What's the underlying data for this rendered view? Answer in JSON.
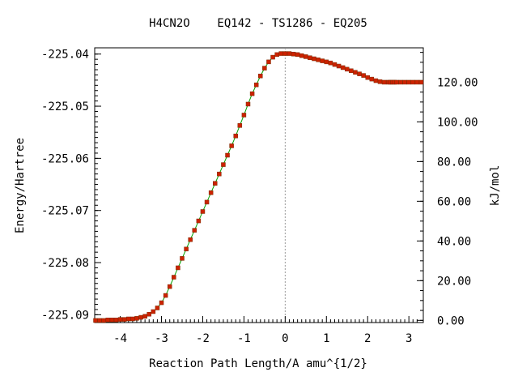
{
  "chart_data": {
    "type": "line",
    "title": "H4CN2O    EQ142 - TS1286 - EQ205",
    "xlabel": "Reaction Path Length/A amu^{1/2}",
    "ylabel": "Energy/Hartree",
    "y2label": "kJ/mol",
    "xlim": [
      -4.62,
      3.35
    ],
    "ylim": [
      -225.0915,
      -225.0388
    ],
    "y2lim": [
      -1.1,
      137.3
    ],
    "grid": false,
    "ts_marker_x": 0,
    "x_ticks": [
      {
        "value": -4,
        "label": "-4"
      },
      {
        "value": -3,
        "label": "-3"
      },
      {
        "value": -2,
        "label": "-2"
      },
      {
        "value": -1,
        "label": "-1"
      },
      {
        "value": 0,
        "label": "0"
      },
      {
        "value": 1,
        "label": "1"
      },
      {
        "value": 2,
        "label": "2"
      },
      {
        "value": 3,
        "label": "3"
      }
    ],
    "y_ticks": [
      {
        "value": -225.04,
        "label": "-225.04"
      },
      {
        "value": -225.05,
        "label": "-225.05"
      },
      {
        "value": -225.06,
        "label": "-225.06"
      },
      {
        "value": -225.07,
        "label": "-225.07"
      },
      {
        "value": -225.08,
        "label": "-225.08"
      },
      {
        "value": -225.09,
        "label": "-225.09"
      }
    ],
    "y2_ticks": [
      {
        "value": 0,
        "label": "0.00"
      },
      {
        "value": 20,
        "label": "20.00"
      },
      {
        "value": 40,
        "label": "40.00"
      },
      {
        "value": 60,
        "label": "60.00"
      },
      {
        "value": 80,
        "label": "80.00"
      },
      {
        "value": 100,
        "label": "100.00"
      },
      {
        "value": 120,
        "label": "120.00"
      }
    ],
    "series": [
      {
        "line_color": "#00a000",
        "marker_color": "#cc2200",
        "x": [
          -4.6,
          -4.5,
          -4.4,
          -4.3,
          -4.2,
          -4.1,
          -4.0,
          -3.9,
          -3.8,
          -3.7,
          -3.6,
          -3.5,
          -3.4,
          -3.3,
          -3.2,
          -3.1,
          -3.0,
          -2.9,
          -2.8,
          -2.7,
          -2.6,
          -2.5,
          -2.4,
          -2.3,
          -2.2,
          -2.1,
          -2.0,
          -1.9,
          -1.8,
          -1.7,
          -1.6,
          -1.5,
          -1.4,
          -1.3,
          -1.2,
          -1.1,
          -1.0,
          -0.9,
          -0.8,
          -0.7,
          -0.6,
          -0.5,
          -0.4,
          -0.3,
          -0.2,
          -0.1,
          0.0,
          0.1,
          0.2,
          0.3,
          0.4,
          0.5,
          0.6,
          0.7,
          0.8,
          0.9,
          1.0,
          1.1,
          1.2,
          1.3,
          1.4,
          1.5,
          1.6,
          1.7,
          1.8,
          1.9,
          2.0,
          2.1,
          2.2,
          2.3,
          2.4,
          2.5,
          2.55,
          2.6,
          2.65,
          2.7,
          2.8,
          2.9,
          3.0,
          3.1,
          3.2,
          3.3
        ],
        "y": [
          -225.0911,
          -225.0911,
          -225.0911,
          -225.091,
          -225.091,
          -225.091,
          -225.0909,
          -225.0909,
          -225.0908,
          -225.0908,
          -225.0907,
          -225.0905,
          -225.0903,
          -225.0899,
          -225.0894,
          -225.0887,
          -225.0877,
          -225.0863,
          -225.0846,
          -225.0828,
          -225.081,
          -225.0792,
          -225.0774,
          -225.0756,
          -225.0738,
          -225.072,
          -225.0702,
          -225.0684,
          -225.0666,
          -225.0648,
          -225.063,
          -225.0612,
          -225.0594,
          -225.0576,
          -225.0557,
          -225.0537,
          -225.0517,
          -225.0496,
          -225.0476,
          -225.0459,
          -225.0442,
          -225.0427,
          -225.0415,
          -225.0406,
          -225.0401,
          -225.0399,
          -225.0399,
          -225.0399,
          -225.04,
          -225.0401,
          -225.0403,
          -225.0405,
          -225.0407,
          -225.0409,
          -225.0411,
          -225.0413,
          -225.0415,
          -225.0417,
          -225.042,
          -225.0423,
          -225.0426,
          -225.0429,
          -225.0432,
          -225.0435,
          -225.0438,
          -225.0441,
          -225.0445,
          -225.0448,
          -225.0451,
          -225.0453,
          -225.0454,
          -225.0454,
          -225.0454,
          -225.0454,
          -225.0454,
          -225.0454,
          -225.0454,
          -225.0454,
          -225.0454,
          -225.0454,
          -225.0454,
          -225.0454
        ]
      }
    ]
  }
}
